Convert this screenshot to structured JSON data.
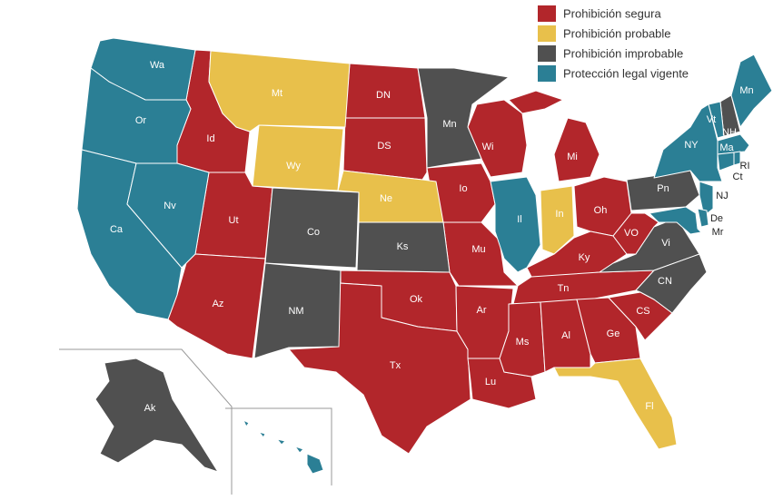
{
  "groups": [
    {
      "label": "Prohibición segura",
      "color": "#b2262b",
      "states": [
        "Id",
        "Ut",
        "Az",
        "DN",
        "DS",
        "Io",
        "Mu",
        "Ok",
        "Tx",
        "Ar",
        "Lu",
        "Wi",
        "Mi",
        "Oh",
        "Ky",
        "Tn",
        "Ms",
        "Al",
        "Ge",
        "CS",
        "VO"
      ]
    },
    {
      "label": "Prohibición probable",
      "color": "#e8c04b",
      "states": [
        "Mt",
        "Wy",
        "Ne",
        "In",
        "Fl"
      ]
    },
    {
      "label": "Prohibición improbable",
      "color": "#505050",
      "states": [
        "Mn",
        "Co",
        "NM",
        "Ks",
        "Pn",
        "Vi",
        "CN",
        "NH",
        "Ak"
      ]
    },
    {
      "label": "Protección legal vigente",
      "color": "#2b7f95",
      "states": [
        "Wa",
        "Or",
        "Ca",
        "Nv",
        "Il",
        "NY",
        "Vt",
        "Ma",
        "Ct",
        "RI",
        "NJ",
        "De",
        "Mr",
        "Mn",
        "Hw"
      ]
    }
  ]
}
